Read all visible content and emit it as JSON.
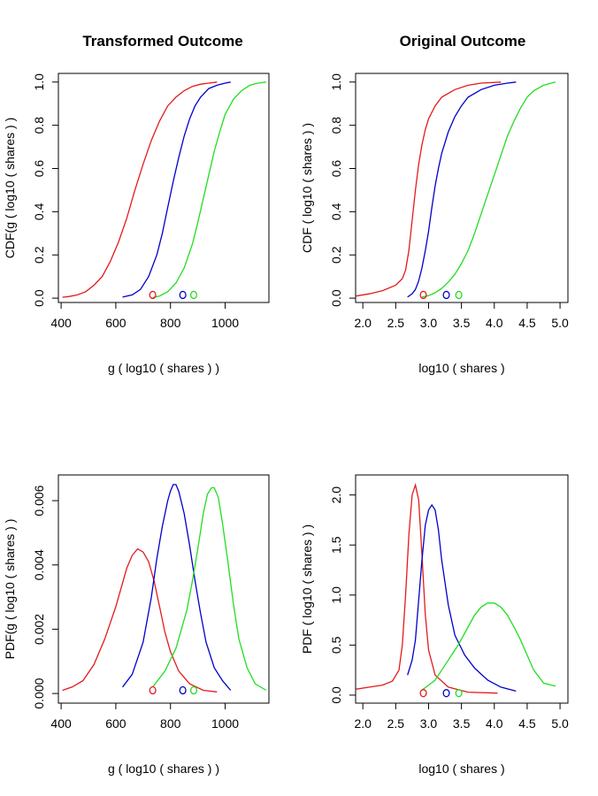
{
  "figure": {
    "col_titles": [
      "Transformed  Outcome",
      "Original  Outcome"
    ]
  },
  "colors": {
    "red": "#e41a1c",
    "blue": "#0000cc",
    "green": "#22dd22"
  },
  "chart_data": [
    {
      "id": "p1",
      "type": "line",
      "title": "Transformed  Outcome",
      "xlabel": "g ( log10 ( shares ) )",
      "ylabel": "CDF(g ( log10 ( shares ) )",
      "xlim": [
        390,
        1160
      ],
      "ylim": [
        -0.02,
        1.04
      ],
      "xticks": [
        400,
        600,
        800,
        1000
      ],
      "yticks": [
        0.0,
        0.2,
        0.4,
        0.6,
        0.8,
        1.0
      ],
      "ytick_labels": [
        "0.0",
        "0.2",
        "0.4",
        "0.6",
        "0.8",
        "1.0"
      ],
      "series": [
        {
          "color": "red",
          "x": [
            405,
            430,
            460,
            490,
            520,
            550,
            580,
            610,
            640,
            670,
            700,
            730,
            760,
            790,
            820,
            850,
            880,
            910,
            940,
            970
          ],
          "y": [
            0.004,
            0.008,
            0.015,
            0.03,
            0.06,
            0.1,
            0.17,
            0.26,
            0.37,
            0.5,
            0.62,
            0.73,
            0.82,
            0.89,
            0.93,
            0.96,
            0.98,
            0.99,
            0.995,
            1.0
          ]
        },
        {
          "color": "blue",
          "x": [
            625,
            660,
            690,
            720,
            750,
            770,
            790,
            810,
            830,
            850,
            870,
            890,
            910,
            940,
            970,
            1000,
            1020
          ],
          "y": [
            0.005,
            0.015,
            0.04,
            0.1,
            0.2,
            0.3,
            0.42,
            0.54,
            0.65,
            0.75,
            0.83,
            0.89,
            0.93,
            0.97,
            0.985,
            0.995,
            1.0
          ]
        },
        {
          "color": "green",
          "x": [
            735,
            760,
            790,
            820,
            850,
            880,
            900,
            920,
            940,
            960,
            980,
            1000,
            1030,
            1060,
            1090,
            1120,
            1150
          ],
          "y": [
            0.003,
            0.01,
            0.03,
            0.07,
            0.14,
            0.25,
            0.35,
            0.46,
            0.57,
            0.68,
            0.77,
            0.85,
            0.92,
            0.96,
            0.985,
            0.995,
            1.0
          ]
        }
      ],
      "markers": [
        {
          "color": "red",
          "x": 735,
          "y": 0.015
        },
        {
          "color": "blue",
          "x": 845,
          "y": 0.015
        },
        {
          "color": "green",
          "x": 885,
          "y": 0.015
        }
      ]
    },
    {
      "id": "p2",
      "type": "line",
      "title": "Original  Outcome",
      "xlabel": "log10 ( shares )",
      "ylabel": "CDF ( log10 ( shares ) )",
      "xlim": [
        1.89,
        5.12
      ],
      "ylim": [
        -0.02,
        1.04
      ],
      "xticks": [
        2.0,
        2.5,
        3.0,
        3.5,
        4.0,
        4.5,
        5.0
      ],
      "xtick_labels": [
        "2.0",
        "2.5",
        "3.0",
        "3.5",
        "4.0",
        "4.5",
        "5.0"
      ],
      "yticks": [
        0.0,
        0.2,
        0.4,
        0.6,
        0.8,
        1.0
      ],
      "ytick_labels": [
        "0.0",
        "0.2",
        "0.4",
        "0.6",
        "0.8",
        "1.0"
      ],
      "series": [
        {
          "color": "red",
          "x": [
            1.9,
            2.1,
            2.3,
            2.5,
            2.6,
            2.65,
            2.7,
            2.75,
            2.8,
            2.85,
            2.9,
            2.95,
            3.0,
            3.1,
            3.2,
            3.4,
            3.6,
            3.8,
            4.1
          ],
          "y": [
            0.01,
            0.02,
            0.035,
            0.06,
            0.09,
            0.13,
            0.22,
            0.36,
            0.5,
            0.62,
            0.71,
            0.78,
            0.83,
            0.89,
            0.93,
            0.965,
            0.985,
            0.995,
            1.0
          ]
        },
        {
          "color": "blue",
          "x": [
            2.68,
            2.75,
            2.8,
            2.85,
            2.9,
            2.95,
            3.0,
            3.05,
            3.1,
            3.15,
            3.2,
            3.3,
            3.4,
            3.5,
            3.6,
            3.8,
            4.0,
            4.2,
            4.33
          ],
          "y": [
            0.005,
            0.02,
            0.04,
            0.08,
            0.14,
            0.22,
            0.31,
            0.42,
            0.52,
            0.6,
            0.67,
            0.77,
            0.84,
            0.89,
            0.93,
            0.965,
            0.985,
            0.995,
            1.0
          ]
        },
        {
          "color": "green",
          "x": [
            2.9,
            3.0,
            3.1,
            3.2,
            3.3,
            3.4,
            3.5,
            3.6,
            3.7,
            3.8,
            3.9,
            4.0,
            4.1,
            4.2,
            4.3,
            4.4,
            4.5,
            4.6,
            4.75,
            4.93
          ],
          "y": [
            0.005,
            0.012,
            0.025,
            0.045,
            0.075,
            0.11,
            0.16,
            0.22,
            0.3,
            0.39,
            0.48,
            0.57,
            0.66,
            0.75,
            0.82,
            0.88,
            0.93,
            0.96,
            0.985,
            1.0
          ]
        }
      ],
      "markers": [
        {
          "color": "red",
          "x": 2.92,
          "y": 0.015
        },
        {
          "color": "blue",
          "x": 3.27,
          "y": 0.015
        },
        {
          "color": "green",
          "x": 3.46,
          "y": 0.015
        }
      ]
    },
    {
      "id": "p3",
      "type": "line",
      "xlabel": "g ( log10 ( shares ) )",
      "ylabel": "PDF(g ( log10 ( shares ) )",
      "xlim": [
        390,
        1160
      ],
      "ylim": [
        -0.0003,
        0.0068
      ],
      "xticks": [
        400,
        600,
        800,
        1000
      ],
      "yticks": [
        0.0,
        0.002,
        0.004,
        0.006
      ],
      "ytick_labels": [
        "0.000",
        "0.002",
        "0.004",
        "0.006"
      ],
      "series": [
        {
          "color": "red",
          "x": [
            405,
            440,
            480,
            520,
            560,
            600,
            620,
            640,
            660,
            680,
            700,
            720,
            740,
            760,
            780,
            800,
            830,
            870,
            920,
            970
          ],
          "y": [
            0.0001,
            0.0002,
            0.0004,
            0.0009,
            0.0017,
            0.0027,
            0.0033,
            0.0039,
            0.0043,
            0.0045,
            0.0044,
            0.0041,
            0.0035,
            0.0027,
            0.0019,
            0.0013,
            0.0007,
            0.0003,
            0.0001,
            5e-05
          ]
        },
        {
          "color": "blue",
          "x": [
            625,
            660,
            700,
            730,
            750,
            770,
            790,
            800,
            810,
            820,
            830,
            850,
            870,
            890,
            910,
            930,
            960,
            990,
            1020
          ],
          "y": [
            0.0002,
            0.0006,
            0.0016,
            0.003,
            0.0042,
            0.0052,
            0.006,
            0.0063,
            0.0065,
            0.0065,
            0.0063,
            0.0056,
            0.0046,
            0.0035,
            0.0025,
            0.0016,
            0.0008,
            0.0004,
            0.0001
          ]
        },
        {
          "color": "green",
          "x": [
            735,
            780,
            820,
            860,
            880,
            900,
            920,
            935,
            950,
            960,
            975,
            990,
            1010,
            1030,
            1050,
            1080,
            1110,
            1150
          ],
          "y": [
            0.0002,
            0.0007,
            0.0014,
            0.0026,
            0.0035,
            0.0045,
            0.0056,
            0.0062,
            0.0064,
            0.0064,
            0.0061,
            0.0053,
            0.0041,
            0.0028,
            0.0017,
            0.0008,
            0.0003,
            0.0001
          ]
        }
      ],
      "markers": [
        {
          "color": "red",
          "x": 735,
          "y": 0.0001
        },
        {
          "color": "blue",
          "x": 845,
          "y": 0.0001
        },
        {
          "color": "green",
          "x": 885,
          "y": 0.0001
        }
      ]
    },
    {
      "id": "p4",
      "type": "line",
      "xlabel": "log10 ( shares )",
      "ylabel": "PDF ( log10 ( shares ) )",
      "xlim": [
        1.89,
        5.12
      ],
      "ylim": [
        -0.08,
        2.2
      ],
      "xticks": [
        2.0,
        2.5,
        3.0,
        3.5,
        4.0,
        4.5,
        5.0
      ],
      "xtick_labels": [
        "2.0",
        "2.5",
        "3.0",
        "3.5",
        "4.0",
        "4.5",
        "5.0"
      ],
      "yticks": [
        0.0,
        0.5,
        1.0,
        1.5,
        2.0
      ],
      "ytick_labels": [
        "0.0",
        "0.5",
        "1.0",
        "1.5",
        "2.0"
      ],
      "series": [
        {
          "color": "red",
          "x": [
            1.9,
            2.1,
            2.3,
            2.45,
            2.55,
            2.6,
            2.65,
            2.7,
            2.75,
            2.8,
            2.85,
            2.9,
            2.95,
            3.0,
            3.1,
            3.3,
            3.6,
            4.05
          ],
          "y": [
            0.06,
            0.08,
            0.1,
            0.14,
            0.25,
            0.5,
            1.0,
            1.6,
            2.0,
            2.1,
            1.95,
            1.4,
            0.8,
            0.45,
            0.2,
            0.08,
            0.03,
            0.02
          ]
        },
        {
          "color": "blue",
          "x": [
            2.68,
            2.75,
            2.8,
            2.85,
            2.9,
            2.95,
            3.0,
            3.05,
            3.1,
            3.15,
            3.2,
            3.3,
            3.4,
            3.55,
            3.7,
            3.9,
            4.1,
            4.33
          ],
          "y": [
            0.2,
            0.35,
            0.55,
            0.95,
            1.35,
            1.7,
            1.85,
            1.9,
            1.85,
            1.65,
            1.35,
            0.9,
            0.6,
            0.4,
            0.27,
            0.15,
            0.08,
            0.04
          ]
        },
        {
          "color": "green",
          "x": [
            2.9,
            3.0,
            3.1,
            3.2,
            3.3,
            3.45,
            3.6,
            3.7,
            3.8,
            3.9,
            4.0,
            4.1,
            4.2,
            4.3,
            4.4,
            4.5,
            4.6,
            4.75,
            4.93
          ],
          "y": [
            0.05,
            0.1,
            0.15,
            0.25,
            0.35,
            0.5,
            0.68,
            0.8,
            0.88,
            0.92,
            0.92,
            0.88,
            0.8,
            0.68,
            0.55,
            0.4,
            0.25,
            0.12,
            0.09
          ]
        }
      ],
      "markers": [
        {
          "color": "red",
          "x": 2.92,
          "y": 0.02
        },
        {
          "color": "blue",
          "x": 3.27,
          "y": 0.02
        },
        {
          "color": "green",
          "x": 3.46,
          "y": 0.02
        }
      ]
    }
  ]
}
